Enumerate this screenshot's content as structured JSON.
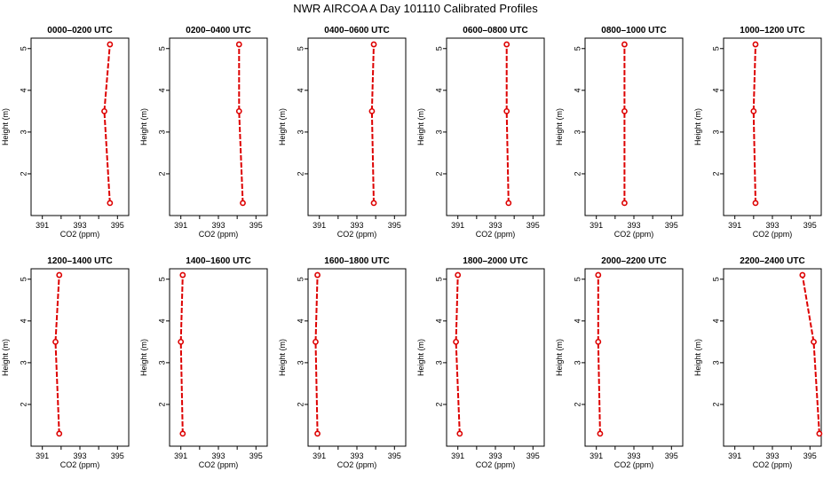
{
  "title": "NWR AIRCOA A  Day 101110  Calibrated Profiles",
  "chart_data": {
    "type": "line",
    "xlabel": "CO2 (ppm)",
    "ylabel": "Height (m)",
    "xlim": [
      390.4,
      395.6
    ],
    "ylim": [
      1.0,
      5.25
    ],
    "xticks": [
      391,
      393,
      395
    ],
    "yticks": [
      2,
      3,
      4,
      5
    ],
    "heights": [
      1.3,
      3.5,
      5.1
    ],
    "panels": [
      {
        "title": "0000–0200 UTC",
        "rows": [
          {
            "co2": 394.6,
            "h": 1.3
          },
          {
            "co2": 394.3,
            "h": 3.5
          },
          {
            "co2": 394.6,
            "h": 5.1
          }
        ]
      },
      {
        "title": "0200–0400 UTC",
        "rows": [
          {
            "co2": 394.3,
            "h": 1.3
          },
          {
            "co2": 394.1,
            "h": 3.5
          },
          {
            "co2": 394.1,
            "h": 5.1
          }
        ]
      },
      {
        "title": "0400–0600 UTC",
        "rows": [
          {
            "co2": 393.9,
            "h": 1.3
          },
          {
            "co2": 393.8,
            "h": 3.5
          },
          {
            "co2": 393.9,
            "h": 5.1
          }
        ]
      },
      {
        "title": "0600–0800 UTC",
        "rows": [
          {
            "co2": 393.7,
            "h": 1.3
          },
          {
            "co2": 393.6,
            "h": 3.5
          },
          {
            "co2": 393.6,
            "h": 5.1
          }
        ]
      },
      {
        "title": "0800–1000 UTC",
        "rows": [
          {
            "co2": 392.5,
            "h": 1.3
          },
          {
            "co2": 392.5,
            "h": 3.5
          },
          {
            "co2": 392.5,
            "h": 5.1
          }
        ]
      },
      {
        "title": "1000–1200 UTC",
        "rows": [
          {
            "co2": 392.1,
            "h": 1.3
          },
          {
            "co2": 392.0,
            "h": 3.5
          },
          {
            "co2": 392.1,
            "h": 5.1
          }
        ]
      },
      {
        "title": "1200–1400 UTC",
        "rows": [
          {
            "co2": 391.9,
            "h": 1.3
          },
          {
            "co2": 391.7,
            "h": 3.5
          },
          {
            "co2": 391.9,
            "h": 5.1
          }
        ]
      },
      {
        "title": "1400–1600 UTC",
        "rows": [
          {
            "co2": 391.1,
            "h": 1.3
          },
          {
            "co2": 391.0,
            "h": 3.5
          },
          {
            "co2": 391.1,
            "h": 5.1
          }
        ]
      },
      {
        "title": "1600–1800 UTC",
        "rows": [
          {
            "co2": 390.9,
            "h": 1.3
          },
          {
            "co2": 390.8,
            "h": 3.5
          },
          {
            "co2": 390.9,
            "h": 5.1
          }
        ]
      },
      {
        "title": "1800–2000 UTC",
        "rows": [
          {
            "co2": 391.1,
            "h": 1.3
          },
          {
            "co2": 390.9,
            "h": 3.5
          },
          {
            "co2": 391.0,
            "h": 5.1
          }
        ]
      },
      {
        "title": "2000–2200 UTC",
        "rows": [
          {
            "co2": 391.2,
            "h": 1.3
          },
          {
            "co2": 391.1,
            "h": 3.5
          },
          {
            "co2": 391.1,
            "h": 5.1
          }
        ]
      },
      {
        "title": "2200–2400 UTC",
        "rows": [
          {
            "co2": 395.5,
            "h": 1.3
          },
          {
            "co2": 395.2,
            "h": 3.5
          },
          {
            "co2": 394.6,
            "h": 5.1
          }
        ]
      }
    ]
  }
}
